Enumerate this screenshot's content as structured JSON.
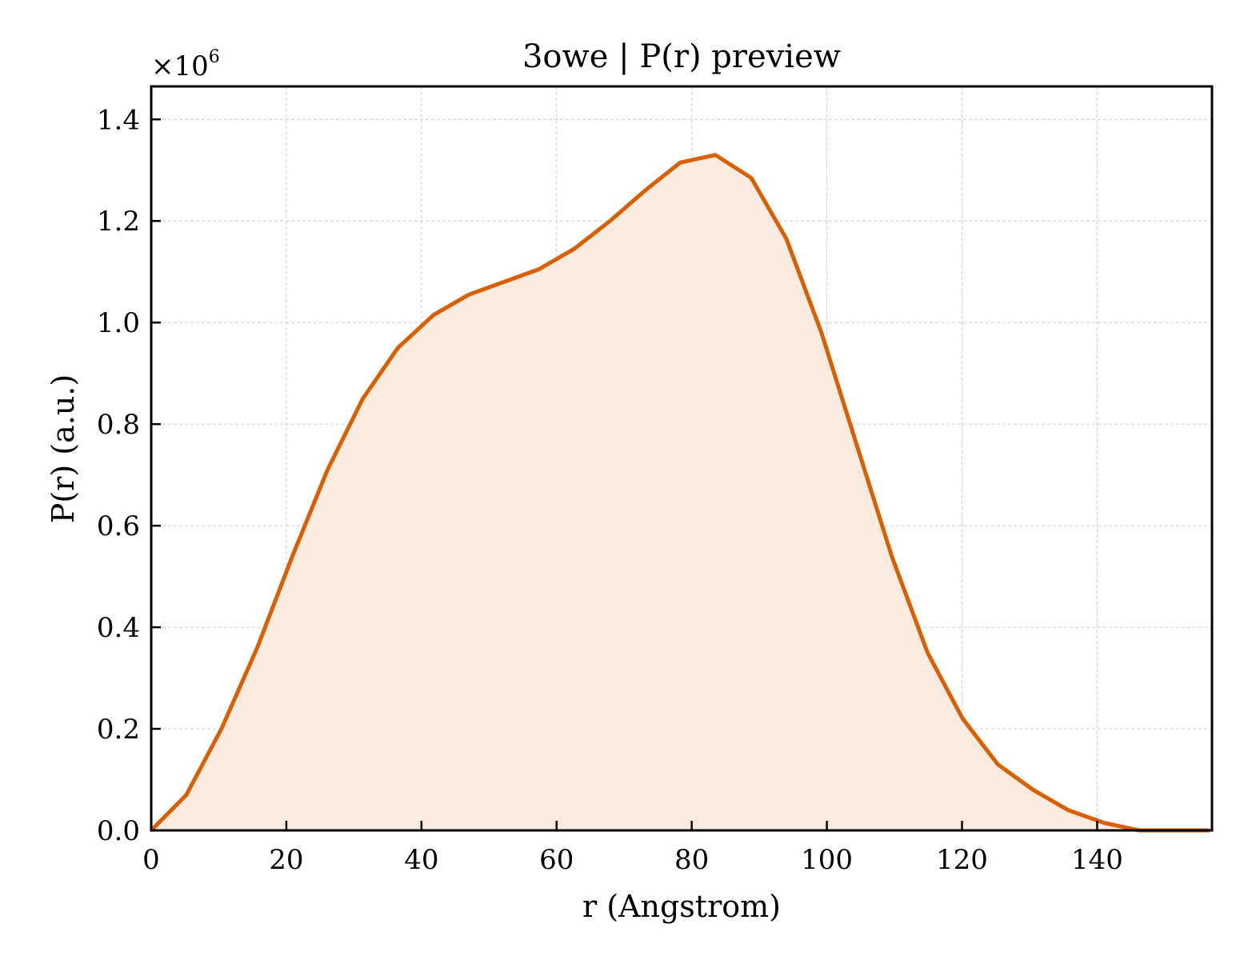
{
  "chart_data": {
    "type": "area",
    "title": "3owe | P(r) preview",
    "xlabel": "r (Angstrom)",
    "ylabel": "P(r) (a.u.)",
    "y_multiplier_label": "×10",
    "y_multiplier_exponent": "6",
    "xlim": [
      0,
      157
    ],
    "ylim": [
      0,
      1.465
    ],
    "xticks": [
      0,
      20,
      40,
      60,
      80,
      100,
      120,
      140
    ],
    "yticks": [
      0.0,
      0.2,
      0.4,
      0.6,
      0.8,
      1.0,
      1.2,
      1.4
    ],
    "xtick_labels": [
      "0",
      "20",
      "40",
      "60",
      "80",
      "100",
      "120",
      "140"
    ],
    "ytick_labels": [
      "0.0",
      "0.2",
      "0.4",
      "0.6",
      "0.8",
      "1.0",
      "1.2",
      "1.4"
    ],
    "grid": true,
    "line_color": "#d95f02",
    "fill_color": "#f9ebe0",
    "series": [
      {
        "x": [
          0,
          5.2,
          10.4,
          15.7,
          20.9,
          26.1,
          31.3,
          36.5,
          41.8,
          47.0,
          52.2,
          57.4,
          62.6,
          67.9,
          73.1,
          78.3,
          83.5,
          88.8,
          94.0,
          99.2,
          104.4,
          109.6,
          114.9,
          120.1,
          125.3,
          130.5,
          135.7,
          141.0,
          146.2,
          151.4,
          156.6
        ],
        "values": [
          0.0,
          0.07,
          0.2,
          0.36,
          0.54,
          0.71,
          0.85,
          0.95,
          1.015,
          1.055,
          1.08,
          1.105,
          1.145,
          1.2,
          1.26,
          1.315,
          1.33,
          1.285,
          1.165,
          0.98,
          0.76,
          0.54,
          0.35,
          0.22,
          0.13,
          0.08,
          0.04,
          0.015,
          0.0,
          0.0,
          0.0
        ]
      }
    ]
  }
}
